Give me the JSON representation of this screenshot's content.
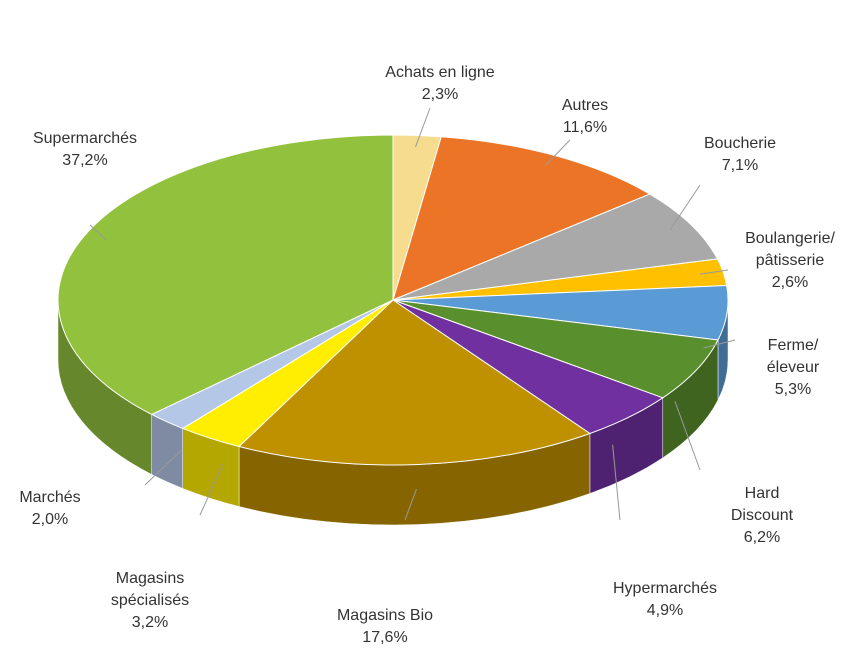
{
  "chart_data": {
    "type": "pie",
    "categories": [
      "Achats en ligne",
      "Autres",
      "Boucherie",
      "Boulangerie/\npâtisserie",
      "Ferme/\néleveur",
      "Hard Discount",
      "Hypermarchés",
      "Magasins Bio",
      "Magasins\nspécialisés",
      "Marchés",
      "Supermarchés"
    ],
    "values": [
      2.3,
      11.6,
      7.1,
      2.6,
      5.3,
      6.2,
      4.9,
      17.6,
      3.2,
      2.0,
      37.2
    ],
    "value_labels": [
      "2,3%",
      "11,6%",
      "7,1%",
      "2,6%",
      "5,3%",
      "6,2%",
      "4,9%",
      "17,6%",
      "3,2%",
      "2,0%",
      "37,2%"
    ],
    "colors": [
      "#f6dc8e",
      "#ec7426",
      "#a9a9a9",
      "#ffc000",
      "#5b9bd5",
      "#5a8f2e",
      "#7030a0",
      "#bf9000",
      "#ffee00",
      "#b4c7e7",
      "#92c13e"
    ]
  }
}
